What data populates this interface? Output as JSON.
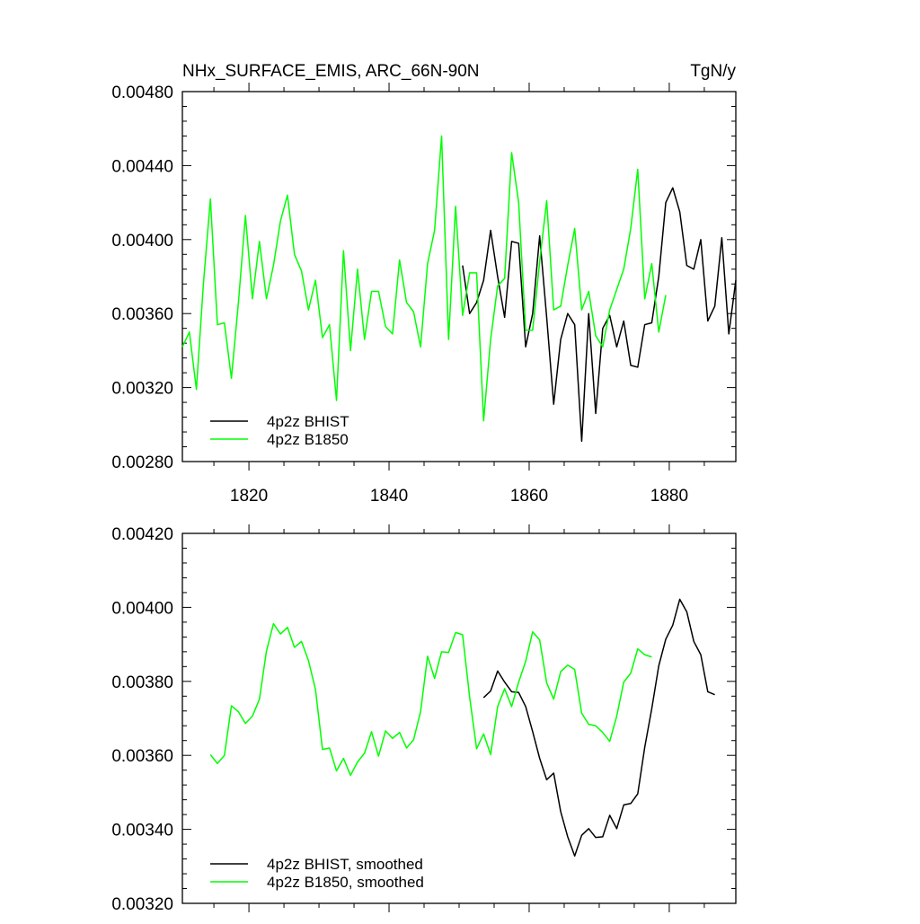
{
  "chart_data": [
    {
      "type": "line",
      "title": "NHx_SURFACE_EMIS, ARC_66N-90N",
      "units": "TgN/y",
      "xlabel": "",
      "ylabel": "",
      "xlim": [
        1810.5,
        1889.5
      ],
      "ylim": [
        0.0028,
        0.0048
      ],
      "x_ticks": [
        1820,
        1840,
        1860,
        1880
      ],
      "x_tick_labels": [
        "1820",
        "1840",
        "1860",
        "1880"
      ],
      "y_ticks": [
        0.0028,
        0.0032,
        0.0036,
        0.004,
        0.0044,
        0.0048
      ],
      "y_tick_labels": [
        "0.00280",
        "0.00320",
        "0.00360",
        "0.00400",
        "0.00440",
        "0.00480"
      ],
      "grid": false,
      "legend_position": "bottom-left",
      "series": [
        {
          "name": "4p2z BHIST",
          "color": "#000000",
          "x": [
            1850.5,
            1851.5,
            1852.5,
            1853.5,
            1854.5,
            1855.5,
            1856.5,
            1857.5,
            1858.5,
            1859.5,
            1860.5,
            1861.5,
            1862.5,
            1863.5,
            1864.5,
            1865.5,
            1866.5,
            1867.5,
            1868.5,
            1869.5,
            1870.5,
            1871.5,
            1872.5,
            1873.5,
            1874.5,
            1875.5,
            1876.5,
            1877.5,
            1878.5,
            1879.5,
            1880.5,
            1881.5,
            1882.5,
            1883.5,
            1884.5,
            1885.5,
            1886.5,
            1887.5,
            1888.5,
            1889.5
          ],
          "values": [
            0.00386,
            0.0036,
            0.00366,
            0.00378,
            0.00405,
            0.0038,
            0.00358,
            0.00399,
            0.00398,
            0.00342,
            0.0036,
            0.00402,
            0.00358,
            0.00311,
            0.00346,
            0.0036,
            0.00354,
            0.00291,
            0.0036,
            0.00306,
            0.00352,
            0.00359,
            0.00342,
            0.00356,
            0.00332,
            0.00331,
            0.00354,
            0.00355,
            0.0038,
            0.0042,
            0.00428,
            0.00415,
            0.00386,
            0.00384,
            0.004,
            0.00356,
            0.00364,
            0.00401,
            0.00349,
            0.00378
          ]
        },
        {
          "name": "4p2z B1850",
          "color": "#00ff00",
          "x": [
            1810.5,
            1811.5,
            1812.5,
            1813.5,
            1814.5,
            1815.5,
            1816.5,
            1817.5,
            1818.5,
            1819.5,
            1820.5,
            1821.5,
            1822.5,
            1823.5,
            1824.5,
            1825.5,
            1826.5,
            1827.5,
            1828.5,
            1829.5,
            1830.5,
            1831.5,
            1832.5,
            1833.5,
            1834.5,
            1835.5,
            1836.5,
            1837.5,
            1838.5,
            1839.5,
            1840.5,
            1841.5,
            1842.5,
            1843.5,
            1844.5,
            1845.5,
            1846.5,
            1847.5,
            1848.5,
            1849.5,
            1850.5,
            1851.5,
            1852.5,
            1853.5,
            1854.5,
            1855.5,
            1856.5,
            1857.5,
            1858.5,
            1859.5,
            1860.5,
            1861.5,
            1862.5,
            1863.5,
            1864.5,
            1865.5,
            1866.5,
            1867.5,
            1868.5,
            1869.5,
            1870.5,
            1871.5,
            1872.5,
            1873.5,
            1874.5,
            1875.5,
            1876.5,
            1877.5,
            1878.5,
            1879.5
          ],
          "values": [
            0.00342,
            0.0035,
            0.00319,
            0.00376,
            0.00422,
            0.00354,
            0.00355,
            0.00325,
            0.00366,
            0.00413,
            0.00368,
            0.00399,
            0.00368,
            0.00386,
            0.0041,
            0.00424,
            0.00392,
            0.00383,
            0.00362,
            0.00378,
            0.00347,
            0.00354,
            0.00313,
            0.00394,
            0.0034,
            0.00384,
            0.00346,
            0.00372,
            0.00372,
            0.00353,
            0.00349,
            0.00389,
            0.00366,
            0.00361,
            0.00342,
            0.00387,
            0.00405,
            0.00456,
            0.00346,
            0.00418,
            0.00359,
            0.00382,
            0.00382,
            0.00302,
            0.00346,
            0.00375,
            0.00379,
            0.00447,
            0.0042,
            0.00351,
            0.00351,
            0.00388,
            0.00421,
            0.00362,
            0.00364,
            0.00386,
            0.00406,
            0.00362,
            0.00372,
            0.00348,
            0.00342,
            0.00362,
            0.00373,
            0.00384,
            0.00406,
            0.00438,
            0.00368,
            0.00387,
            0.0035,
            0.0037
          ]
        }
      ]
    },
    {
      "type": "line",
      "title": "",
      "xlabel": "",
      "ylabel": "",
      "xlim": [
        1810.5,
        1889.5
      ],
      "ylim": [
        0.0032,
        0.0042
      ],
      "x_ticks": [
        1820,
        1840,
        1860,
        1880
      ],
      "x_tick_labels": [],
      "y_ticks": [
        0.0032,
        0.0034,
        0.0036,
        0.0038,
        0.004,
        0.0042
      ],
      "y_tick_labels": [
        "0.00320",
        "0.00340",
        "0.00360",
        "0.00380",
        "0.00400",
        "0.00420"
      ],
      "grid": false,
      "legend_position": "bottom-left",
      "series": [
        {
          "name": "4p2z BHIST, smoothed",
          "color": "#000000",
          "x": [
            1853.5,
            1854.5,
            1855.5,
            1856.5,
            1857.5,
            1858.5,
            1859.5,
            1860.5,
            1861.5,
            1862.5,
            1863.5,
            1864.5,
            1865.5,
            1866.5,
            1867.5,
            1868.5,
            1869.5,
            1870.5,
            1871.5,
            1872.5,
            1873.5,
            1874.5,
            1875.5,
            1876.5,
            1877.5,
            1878.5,
            1879.5,
            1880.5,
            1881.5,
            1882.5,
            1883.5,
            1884.5,
            1885.5,
            1886.5
          ],
          "values": [
            0.003756,
            0.003774,
            0.003828,
            0.003798,
            0.003772,
            0.00377,
            0.003732,
            0.003664,
            0.003592,
            0.003534,
            0.003552,
            0.003448,
            0.00338,
            0.003328,
            0.003384,
            0.003402,
            0.003378,
            0.00338,
            0.003438,
            0.003402,
            0.003466,
            0.00347,
            0.003496,
            0.003622,
            0.003726,
            0.003842,
            0.003914,
            0.003952,
            0.004022,
            0.003988,
            0.003908,
            0.003872,
            0.003772,
            0.003764
          ]
        },
        {
          "name": "4p2z B1850, smoothed",
          "color": "#00ff00",
          "x": [
            1814.5,
            1815.5,
            1816.5,
            1817.5,
            1818.5,
            1819.5,
            1820.5,
            1821.5,
            1822.5,
            1823.5,
            1824.5,
            1825.5,
            1826.5,
            1827.5,
            1828.5,
            1829.5,
            1830.5,
            1831.5,
            1832.5,
            1833.5,
            1834.5,
            1835.5,
            1836.5,
            1837.5,
            1838.5,
            1839.5,
            1840.5,
            1841.5,
            1842.5,
            1843.5,
            1844.5,
            1845.5,
            1846.5,
            1847.5,
            1848.5,
            1849.5,
            1850.5,
            1851.5,
            1852.5,
            1853.5,
            1854.5,
            1855.5,
            1856.5,
            1857.5,
            1858.5,
            1859.5,
            1860.5,
            1861.5,
            1862.5,
            1863.5,
            1864.5,
            1865.5,
            1866.5,
            1867.5,
            1868.5,
            1869.5,
            1870.5,
            1871.5,
            1872.5,
            1873.5,
            1874.5,
            1875.5,
            1876.5,
            1877.5
          ],
          "values": [
            0.003602,
            0.003578,
            0.0036,
            0.003734,
            0.003718,
            0.003686,
            0.003706,
            0.003752,
            0.003882,
            0.003956,
            0.003928,
            0.003946,
            0.003892,
            0.003908,
            0.003856,
            0.003778,
            0.003616,
            0.00362,
            0.003558,
            0.003592,
            0.003546,
            0.003582,
            0.003606,
            0.003664,
            0.003598,
            0.003666,
            0.003646,
            0.003662,
            0.00362,
            0.003642,
            0.003718,
            0.003868,
            0.003808,
            0.00388,
            0.003878,
            0.003932,
            0.003926,
            0.003758,
            0.003618,
            0.003658,
            0.003602,
            0.003732,
            0.00378,
            0.003732,
            0.003798,
            0.003854,
            0.003934,
            0.003912,
            0.003796,
            0.003752,
            0.003826,
            0.003844,
            0.003832,
            0.003714,
            0.003684,
            0.00368,
            0.003662,
            0.003638,
            0.003706,
            0.003798,
            0.003822,
            0.003888,
            0.003872,
            0.003866
          ]
        }
      ]
    }
  ]
}
